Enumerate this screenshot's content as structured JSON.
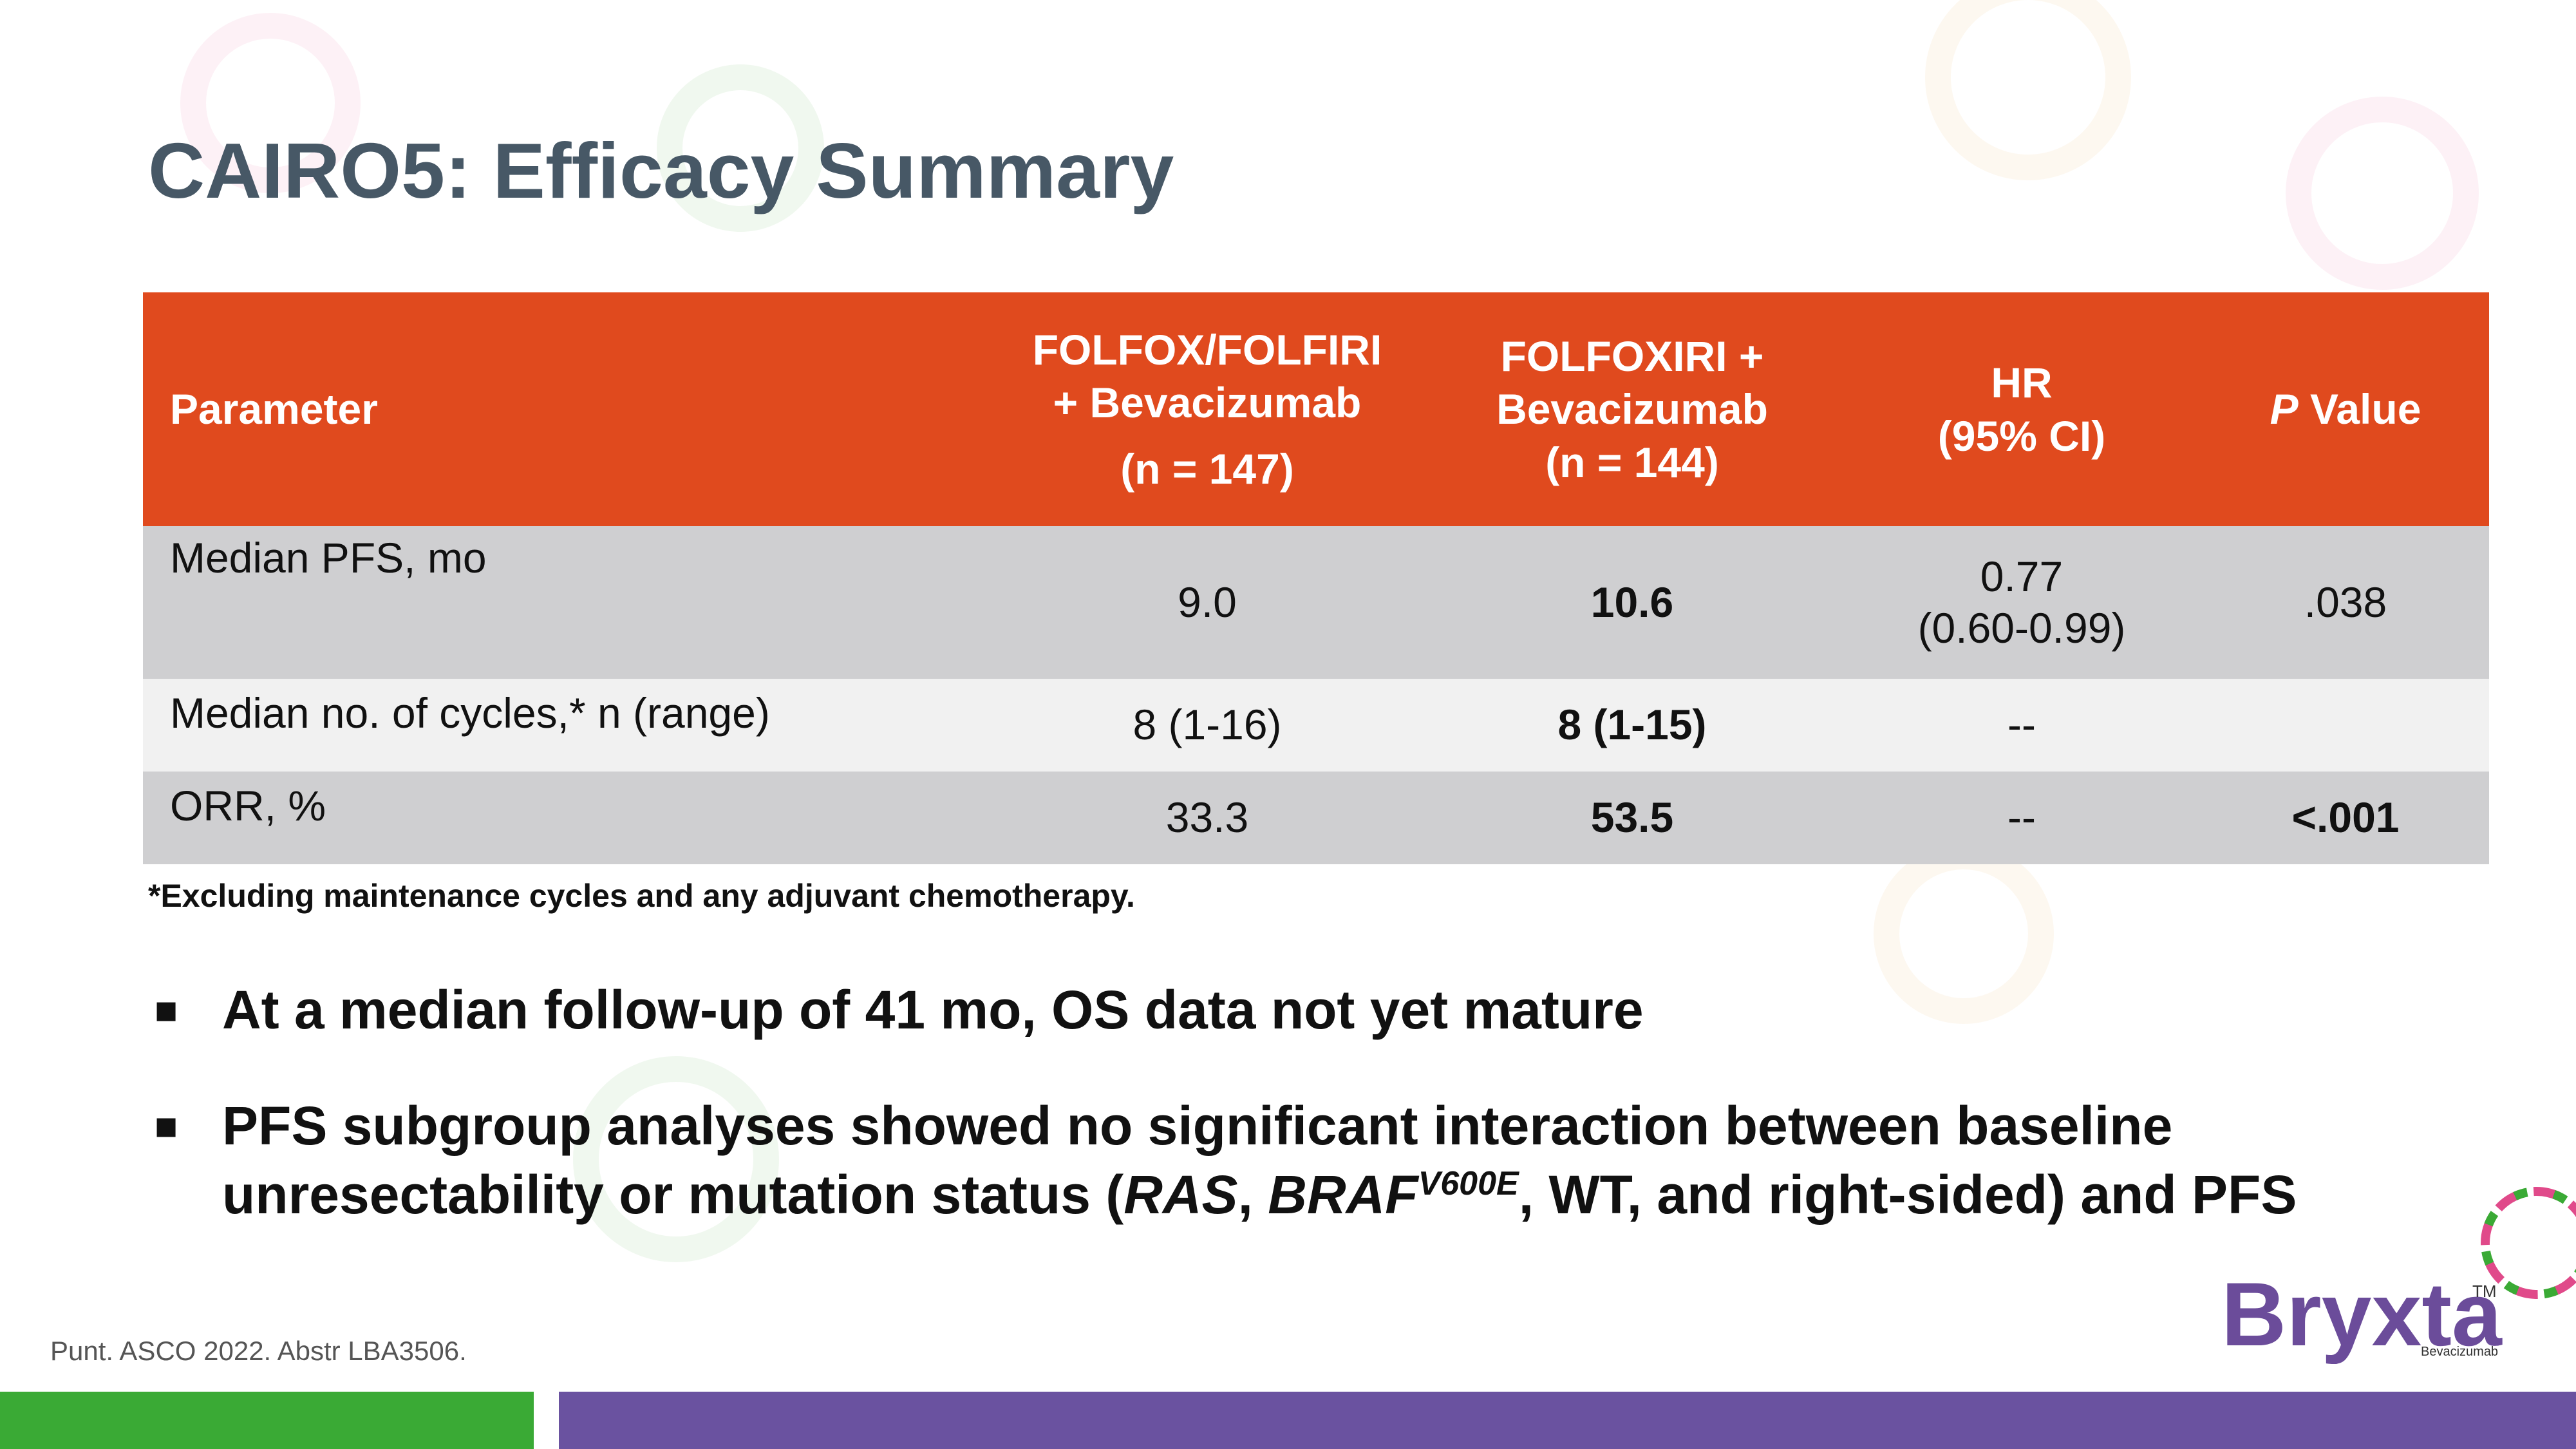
{
  "title": "CAIRO5: Efficacy Summary",
  "table": {
    "header": [
      [
        "Parameter"
      ],
      [
        "FOLFOX/FOLFIRI",
        "+ Bevacizumab",
        "(n = 147)"
      ],
      [
        "FOLFOXIRI +",
        "Bevacizumab",
        "(n = 144)"
      ],
      [
        "HR",
        "(95% CI)"
      ],
      [
        "P",
        "Value"
      ]
    ],
    "rows": [
      [
        "Median PFS, mo",
        "9.0",
        "10.6",
        [
          "0.77",
          "(0.60-0.99)"
        ],
        ".038"
      ],
      [
        "Median no. of cycles,* n (range)",
        "8 (1-16)",
        "8 (1-15)",
        "--",
        null
      ],
      [
        "ORR, %",
        "33.3",
        "53.5",
        "--",
        "<.001"
      ]
    ]
  },
  "footnote": "*Excluding maintenance cycles and any adjuvant chemotherapy.",
  "bullets": [
    [
      "At a median follow-up of 41 mo, OS data not yet mature"
    ],
    [
      "PFS subgroup analyses showed no significant interaction between baseline unresectability or mutation status (",
      "RAS",
      ", ",
      "BRAF",
      "V600E",
      ", WT, and right-sided) and PFS"
    ]
  ],
  "reference": "Punt. ASCO 2022. Abstr LBA3506.",
  "logo": {
    "name": "Bryxta",
    "tm": "TM",
    "generic": "Bevacizumab"
  }
}
